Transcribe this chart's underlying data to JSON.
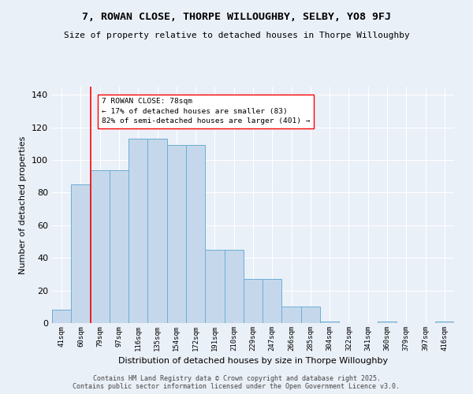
{
  "title": "7, ROWAN CLOSE, THORPE WILLOUGHBY, SELBY, YO8 9FJ",
  "subtitle": "Size of property relative to detached houses in Thorpe Willoughby",
  "xlabel": "Distribution of detached houses by size in Thorpe Willoughby",
  "ylabel": "Number of detached properties",
  "categories": [
    "41sqm",
    "60sqm",
    "79sqm",
    "97sqm",
    "116sqm",
    "135sqm",
    "154sqm",
    "172sqm",
    "191sqm",
    "210sqm",
    "229sqm",
    "247sqm",
    "266sqm",
    "285sqm",
    "304sqm",
    "322sqm",
    "341sqm",
    "360sqm",
    "379sqm",
    "397sqm",
    "416sqm"
  ],
  "values": [
    8,
    85,
    94,
    94,
    113,
    113,
    109,
    109,
    45,
    45,
    27,
    27,
    10,
    10,
    1,
    0,
    0,
    1,
    0,
    0,
    1
  ],
  "bar_color": "#c5d8eb",
  "bar_edge_color": "#6aaed6",
  "red_line_index": 1.5,
  "annotation_text": "7 ROWAN CLOSE: 78sqm\n← 17% of detached houses are smaller (83)\n82% of semi-detached houses are larger (401) →",
  "footer": "Contains HM Land Registry data © Crown copyright and database right 2025.\nContains public sector information licensed under the Open Government Licence v3.0.",
  "ylim": [
    0,
    145
  ],
  "yticks": [
    0,
    20,
    40,
    60,
    80,
    100,
    120,
    140
  ],
  "bg_color": "#eaf0f8",
  "grid_color": "#ffffff",
  "title_fontsize": 9.5,
  "subtitle_fontsize": 8,
  "ylabel_fontsize": 8,
  "xlabel_fontsize": 8,
  "ytick_fontsize": 8,
  "xtick_fontsize": 6.5
}
